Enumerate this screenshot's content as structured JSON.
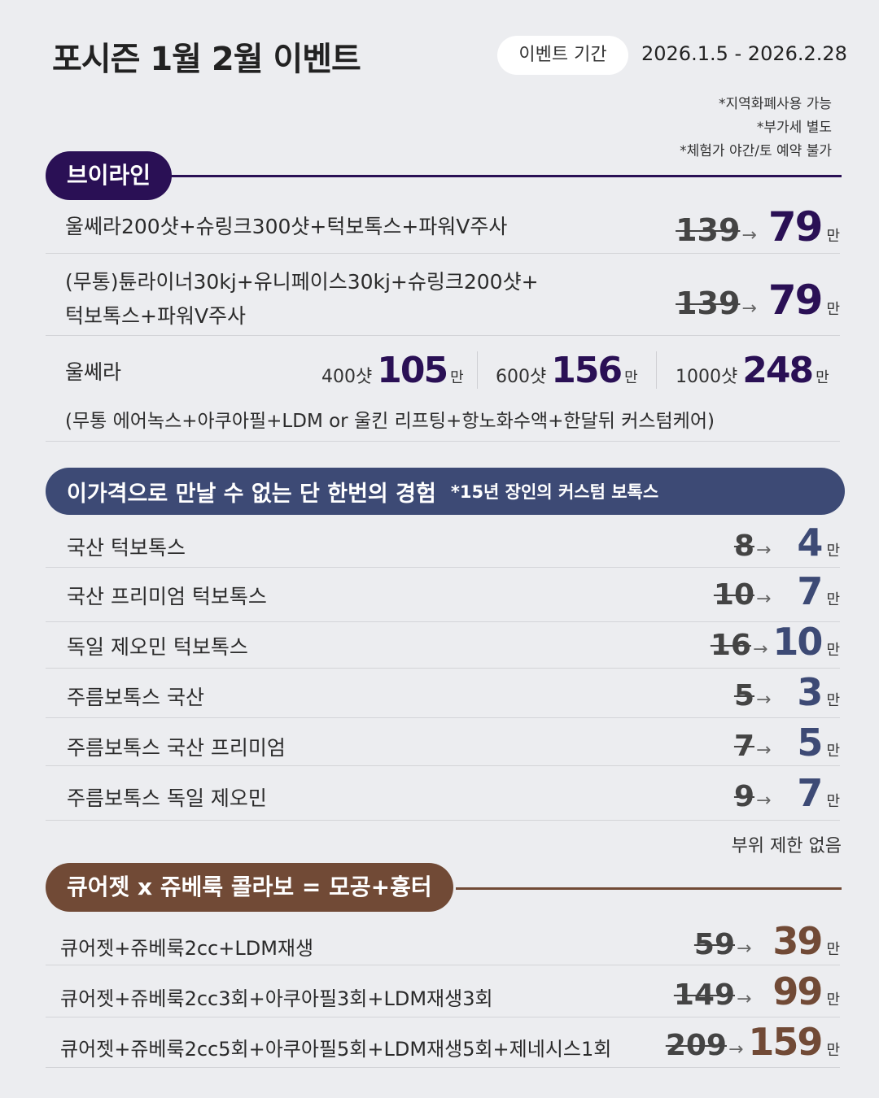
{
  "header": {
    "title": "포시즌 1월 2월 이벤트",
    "period_label": "이벤트 기간",
    "period_dates": "2026.1.5 - 2026.2.28",
    "notes": [
      "*지역화폐사용 가능",
      "*부가세 별도",
      "*체험가 야간/토 예약 불가"
    ]
  },
  "colors": {
    "vline": "#2a1055",
    "botox": "#3d4a75",
    "collab": "#714a36"
  },
  "vline": {
    "title": "브이라인",
    "items": [
      {
        "text": "울쎄라200샷+슈링크300샷+턱보톡스+파워V주사",
        "old": "139",
        "new": "79",
        "unit": "만"
      },
      {
        "text_line1": "(무통)튠라이너30kj+유니페이스30kj+슈링크200샷+",
        "text_line2": "턱보톡스+파워V주사",
        "old": "139",
        "new": "79",
        "unit": "만"
      }
    ],
    "ulthera": {
      "label": "울쎄라",
      "tiers": [
        {
          "shots": "400샷",
          "price": "105",
          "unit": "만"
        },
        {
          "shots": "600샷",
          "price": "156",
          "unit": "만"
        },
        {
          "shots": "1000샷",
          "price": "248",
          "unit": "만"
        }
      ],
      "note": "(무통 에어녹스+아쿠아필+LDM or 울킨 리프팅+항노화수액+한달뒤 커스텀케어)"
    }
  },
  "botox": {
    "title": "이가격으로 만날 수 없는 단 한번의 경험",
    "subtitle": "*15년 장인의 커스텀 보톡스",
    "items": [
      {
        "text": "국산 턱보톡스",
        "old": "8",
        "new": "4",
        "unit": "만"
      },
      {
        "text": "국산 프리미엄 턱보톡스",
        "old": "10",
        "new": "7",
        "unit": "만"
      },
      {
        "text": "독일 제오민 턱보톡스",
        "old": "16",
        "new": "10",
        "unit": "만"
      },
      {
        "text": "주름보톡스 국산",
        "old": "5",
        "new": "3",
        "unit": "만"
      },
      {
        "text": "주름보톡스 국산 프리미엄",
        "old": "7",
        "new": "5",
        "unit": "만"
      },
      {
        "text": "주름보톡스 독일 제오민",
        "old": "9",
        "new": "7",
        "unit": "만"
      }
    ],
    "footnote": "부위 제한 없음"
  },
  "collab": {
    "title": "큐어젯 x 쥬베룩 콜라보 = 모공+흉터",
    "items": [
      {
        "text": "큐어젯+쥬베룩2cc+LDM재생",
        "old": "59",
        "new": "39",
        "unit": "만"
      },
      {
        "text": "큐어젯+쥬베룩2cc3회+아쿠아필3회+LDM재생3회",
        "old": "149",
        "new": "99",
        "unit": "만"
      },
      {
        "text": "큐어젯+쥬베룩2cc5회+아쿠아필5회+LDM재생5회+제네시스1회",
        "old": "209",
        "new": "159",
        "unit": "만"
      }
    ]
  }
}
